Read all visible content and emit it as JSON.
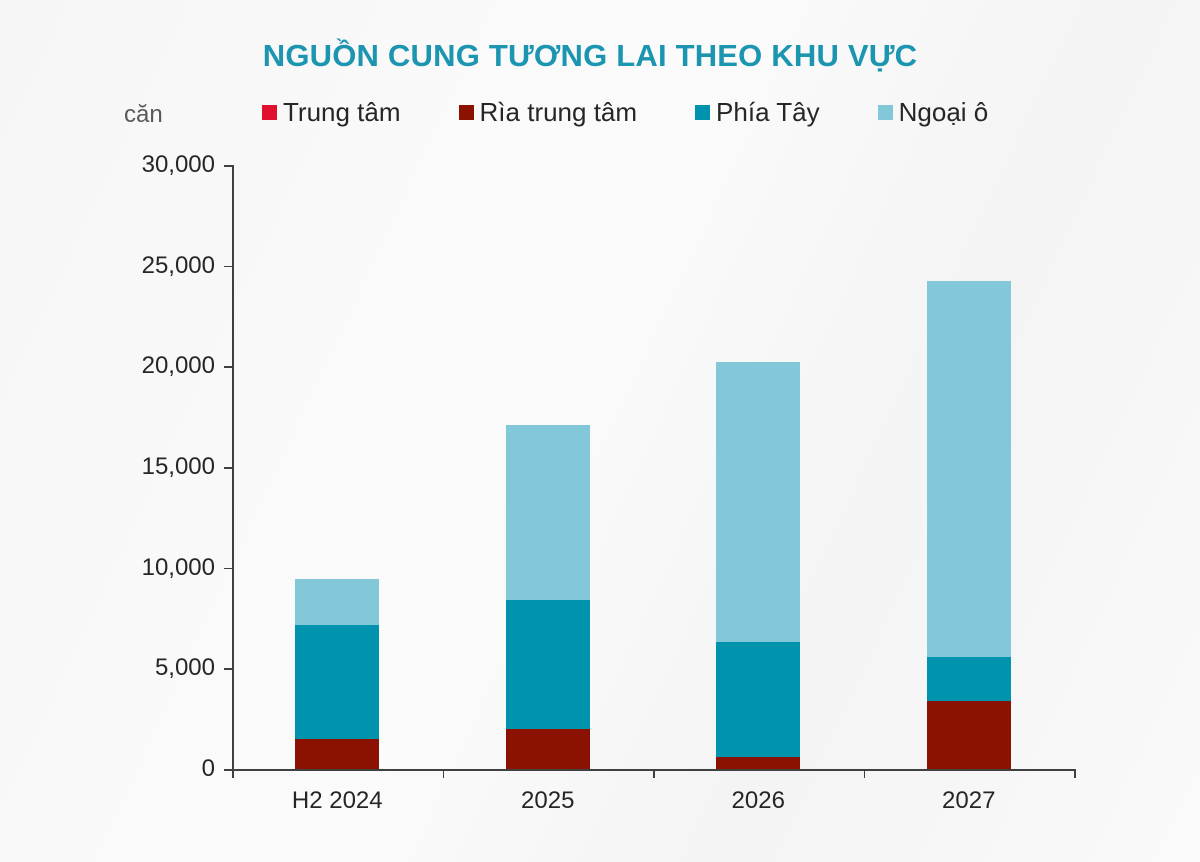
{
  "chart_data": {
    "type": "bar",
    "stacked": true,
    "title": "NGUỒN CUNG TƯƠNG LAI THEO KHU VỰC",
    "xlabel": "",
    "ylabel": "căn",
    "ylim": [
      0,
      30000
    ],
    "yticks": [
      0,
      5000,
      10000,
      15000,
      20000,
      25000,
      30000
    ],
    "ytick_labels": [
      "0",
      "5,000",
      "10,000",
      "15,000",
      "20,000",
      "25,000",
      "30,000"
    ],
    "grid": false,
    "legend_position": "top",
    "categories": [
      "H2 2024",
      "2025",
      "2026",
      "2027"
    ],
    "series": [
      {
        "name": "Trung tâm",
        "color": "#e0102f",
        "values": [
          0,
          0,
          0,
          0
        ]
      },
      {
        "name": "Rìa trung tâm",
        "color": "#8b1100",
        "values": [
          1500,
          2000,
          600,
          3400
        ]
      },
      {
        "name": "Phía Tây",
        "color": "#0093ae",
        "values": [
          5650,
          6400,
          5700,
          2150
        ]
      },
      {
        "name": "Ngoại ô",
        "color": "#83c8d8",
        "values": [
          2300,
          8700,
          13900,
          18700
        ]
      }
    ],
    "totals": [
      9450,
      17100,
      20200,
      24250
    ]
  },
  "colors": {
    "title": "#1b95b0",
    "axis": "#404040",
    "text": "#262626"
  }
}
